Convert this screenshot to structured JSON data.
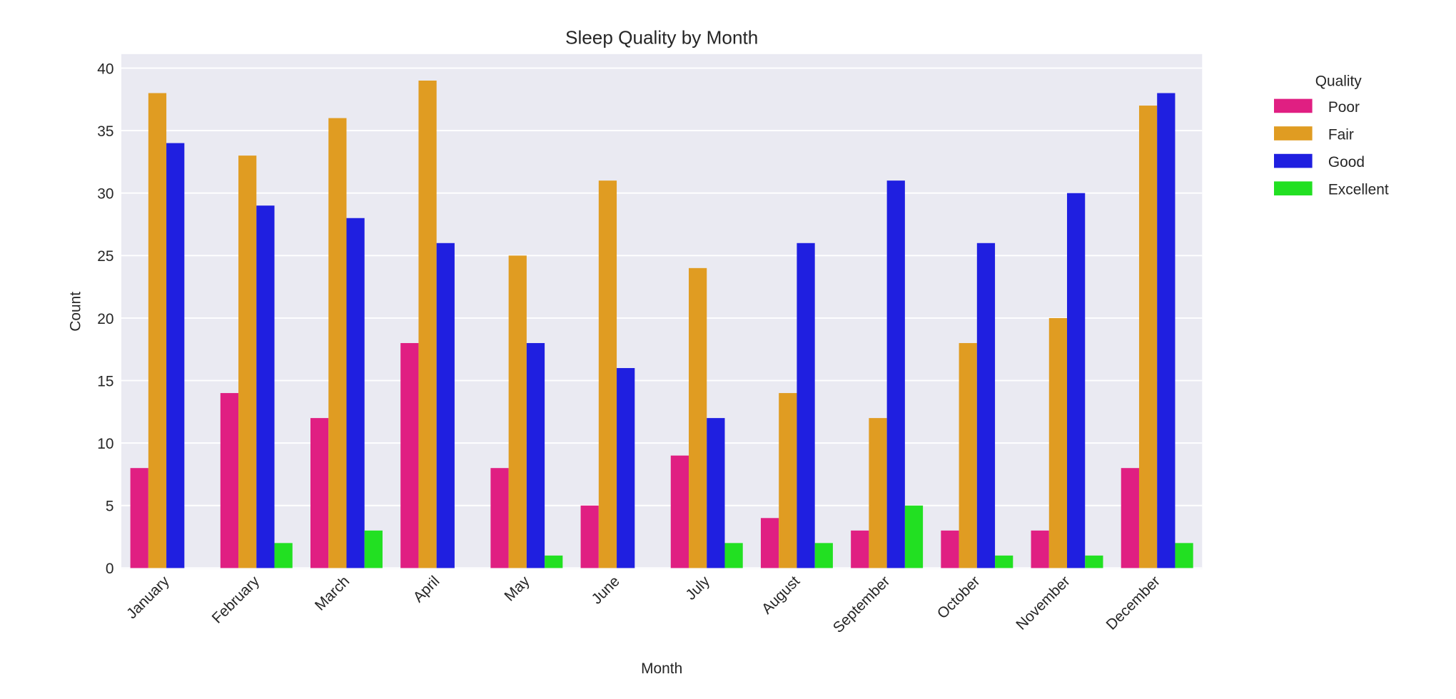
{
  "chart_data": {
    "type": "bar",
    "title": "Sleep Quality by Month",
    "xlabel": "Month",
    "ylabel": "Count",
    "ylim": [
      0,
      40
    ],
    "yticks": [
      0,
      5,
      10,
      15,
      20,
      25,
      30,
      35,
      40
    ],
    "grid": true,
    "legend": {
      "title": "Quality",
      "placement": "outside-right"
    },
    "categories": [
      "January",
      "February",
      "March",
      "April",
      "May",
      "June",
      "July",
      "August",
      "September",
      "October",
      "November",
      "December"
    ],
    "series": [
      {
        "name": "Poor",
        "color": "#e01f82",
        "values": [
          8,
          14,
          12,
          18,
          8,
          5,
          9,
          4,
          3,
          3,
          3,
          8
        ]
      },
      {
        "name": "Fair",
        "color": "#e09c22",
        "values": [
          38,
          33,
          36,
          39,
          25,
          31,
          24,
          14,
          12,
          18,
          20,
          37
        ]
      },
      {
        "name": "Good",
        "color": "#1f1fe0",
        "values": [
          34,
          29,
          28,
          26,
          18,
          16,
          12,
          26,
          31,
          26,
          30,
          38
        ]
      },
      {
        "name": "Excellent",
        "color": "#22e022",
        "values": [
          0,
          2,
          3,
          0,
          1,
          0,
          2,
          2,
          5,
          1,
          1,
          2
        ]
      }
    ]
  }
}
